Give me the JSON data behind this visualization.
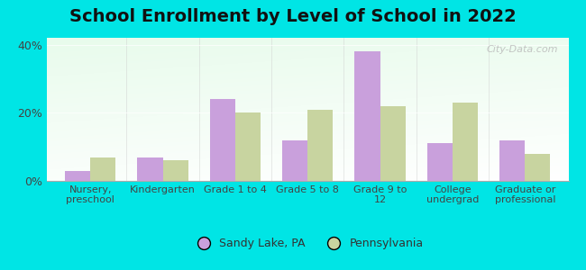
{
  "title": "School Enrollment by Level of School in 2022",
  "categories": [
    "Nursery,\npreschool",
    "Kindergarten",
    "Grade 1 to 4",
    "Grade 5 to 8",
    "Grade 9 to\n12",
    "College\nundergrad",
    "Graduate or\nprofessional"
  ],
  "sandy_lake": [
    3,
    7,
    24,
    12,
    38,
    11,
    12
  ],
  "pennsylvania": [
    7,
    6,
    20,
    21,
    22,
    23,
    8
  ],
  "sandy_lake_color": "#c9a0dc",
  "pennsylvania_color": "#c8d4a0",
  "background_outer": "#00e5e5",
  "ylim": [
    0,
    42
  ],
  "yticks": [
    0,
    20,
    40
  ],
  "ytick_labels": [
    "0%",
    "20%",
    "40%"
  ],
  "bar_width": 0.35,
  "title_fontsize": 14,
  "legend_labels": [
    "Sandy Lake, PA",
    "Pennsylvania"
  ],
  "watermark": "City-Data.com"
}
